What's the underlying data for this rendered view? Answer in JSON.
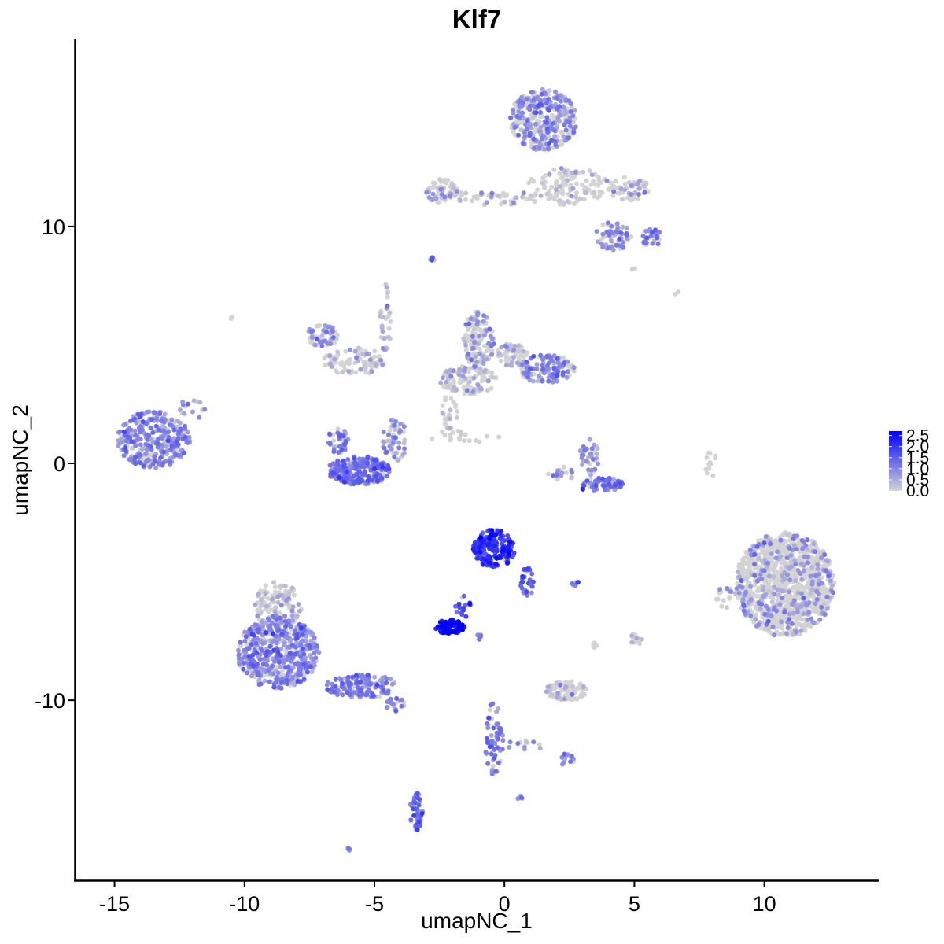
{
  "chart_data": {
    "type": "scatter",
    "title": "Klf7",
    "xlabel": "umapNC_1",
    "ylabel": "umapNC_2",
    "xlim": [
      -16.5,
      14.4
    ],
    "ylim": [
      -17.6,
      17.9
    ],
    "x_ticks": [
      {
        "value": -15,
        "label": "-15"
      },
      {
        "value": -10,
        "label": "-10"
      },
      {
        "value": -5,
        "label": "-5"
      },
      {
        "value": 0,
        "label": "0"
      },
      {
        "value": 5,
        "label": "5"
      },
      {
        "value": 10,
        "label": "10"
      }
    ],
    "y_ticks": [
      {
        "value": 10,
        "label": "10"
      },
      {
        "value": 0,
        "label": "0"
      },
      {
        "value": -10,
        "label": "-10"
      }
    ],
    "grid": false,
    "color_scale": {
      "low_color": "#d3d3d3",
      "high_color": "#0000ff",
      "min": 0,
      "max": 2.7,
      "legend_position": "right",
      "breaks": [
        {
          "value": 0.0,
          "label": "0.0"
        },
        {
          "value": 0.5,
          "label": "0.5"
        },
        {
          "value": 1.0,
          "label": "1.0"
        },
        {
          "value": 1.5,
          "label": "1.5"
        },
        {
          "value": 2.0,
          "label": "2.0"
        },
        {
          "value": 2.5,
          "label": "2.5"
        }
      ]
    },
    "clusters": [
      {
        "cx": -13.5,
        "cy": 1.0,
        "rx": 1.4,
        "ry": 1.2,
        "n": 320,
        "expr": 0.9,
        "frac_expr": 0.8
      },
      {
        "cx": -12.0,
        "cy": 2.3,
        "rx": 0.5,
        "ry": 0.5,
        "n": 15,
        "expr": 0.7,
        "frac_expr": 0.6
      },
      {
        "cx": -8.7,
        "cy": -8.0,
        "rx": 1.6,
        "ry": 1.5,
        "n": 560,
        "expr": 0.9,
        "frac_expr": 0.75
      },
      {
        "cx": -8.7,
        "cy": -6.0,
        "rx": 0.9,
        "ry": 1.0,
        "n": 120,
        "expr": 0.5,
        "frac_expr": 0.4
      },
      {
        "cx": -5.5,
        "cy": -9.4,
        "rx": 1.4,
        "ry": 0.5,
        "n": 150,
        "expr": 1.0,
        "frac_expr": 0.8
      },
      {
        "cx": -4.2,
        "cy": -10.2,
        "rx": 0.4,
        "ry": 0.3,
        "n": 20,
        "expr": 1.0,
        "frac_expr": 0.8
      },
      {
        "cx": -3.4,
        "cy": -14.7,
        "rx": 0.25,
        "ry": 0.8,
        "n": 45,
        "expr": 1.1,
        "frac_expr": 0.85
      },
      {
        "cx": -6.0,
        "cy": -16.3,
        "rx": 0.1,
        "ry": 0.08,
        "n": 4,
        "expr": 1.0,
        "frac_expr": 0.8
      },
      {
        "cx": -5.6,
        "cy": -0.3,
        "rx": 1.2,
        "ry": 0.6,
        "n": 260,
        "expr": 1.1,
        "frac_expr": 0.85
      },
      {
        "cx": -4.2,
        "cy": 1.0,
        "rx": 0.5,
        "ry": 0.9,
        "n": 60,
        "expr": 0.8,
        "frac_expr": 0.6
      },
      {
        "cx": -6.4,
        "cy": 1.0,
        "rx": 0.4,
        "ry": 0.6,
        "n": 40,
        "expr": 1.0,
        "frac_expr": 0.8
      },
      {
        "cx": -7.0,
        "cy": 5.4,
        "rx": 0.6,
        "ry": 0.5,
        "n": 70,
        "expr": 0.7,
        "frac_expr": 0.5
      },
      {
        "cx": -5.8,
        "cy": 4.3,
        "rx": 1.2,
        "ry": 0.6,
        "n": 90,
        "expr": 0.4,
        "frac_expr": 0.3
      },
      {
        "cx": -4.6,
        "cy": 6.0,
        "rx": 0.25,
        "ry": 1.6,
        "n": 30,
        "expr": 0.6,
        "frac_expr": 0.5
      },
      {
        "cx": -2.8,
        "cy": 8.6,
        "rx": 0.1,
        "ry": 0.1,
        "n": 5,
        "expr": 1.2,
        "frac_expr": 1.0
      },
      {
        "cx": -1.0,
        "cy": 5.2,
        "rx": 0.6,
        "ry": 1.2,
        "n": 130,
        "expr": 0.7,
        "frac_expr": 0.55
      },
      {
        "cx": -1.4,
        "cy": 3.5,
        "rx": 1.1,
        "ry": 0.6,
        "n": 110,
        "expr": 0.4,
        "frac_expr": 0.35
      },
      {
        "cx": 1.6,
        "cy": 4.0,
        "rx": 1.1,
        "ry": 0.6,
        "n": 130,
        "expr": 0.9,
        "frac_expr": 0.7
      },
      {
        "cx": 0.3,
        "cy": 4.6,
        "rx": 0.6,
        "ry": 0.5,
        "n": 60,
        "expr": 0.5,
        "frac_expr": 0.4
      },
      {
        "cx": -2.1,
        "cy": 2.1,
        "rx": 0.3,
        "ry": 0.9,
        "n": 25,
        "expr": 0.2,
        "frac_expr": 0.2
      },
      {
        "cx": -1.6,
        "cy": 1.1,
        "rx": 1.4,
        "ry": 0.3,
        "n": 18,
        "expr": 0.1,
        "frac_expr": 0.1
      },
      {
        "cx": 1.5,
        "cy": 14.5,
        "rx": 1.3,
        "ry": 1.3,
        "n": 340,
        "expr": 0.8,
        "frac_expr": 0.6
      },
      {
        "cx": -2.4,
        "cy": 11.5,
        "rx": 0.6,
        "ry": 0.5,
        "n": 60,
        "expr": 0.4,
        "frac_expr": 0.35
      },
      {
        "cx": -0.5,
        "cy": 11.2,
        "rx": 2.0,
        "ry": 0.3,
        "n": 45,
        "expr": 0.4,
        "frac_expr": 0.3
      },
      {
        "cx": 2.5,
        "cy": 11.7,
        "rx": 1.6,
        "ry": 0.8,
        "n": 120,
        "expr": 0.3,
        "frac_expr": 0.2
      },
      {
        "cx": 4.8,
        "cy": 11.6,
        "rx": 0.8,
        "ry": 0.5,
        "n": 60,
        "expr": 0.5,
        "frac_expr": 0.35
      },
      {
        "cx": 4.2,
        "cy": 9.6,
        "rx": 0.7,
        "ry": 0.6,
        "n": 70,
        "expr": 0.8,
        "frac_expr": 0.6
      },
      {
        "cx": 5.7,
        "cy": 9.5,
        "rx": 0.4,
        "ry": 0.4,
        "n": 35,
        "expr": 0.9,
        "frac_expr": 0.7
      },
      {
        "cx": 3.3,
        "cy": 0.3,
        "rx": 0.4,
        "ry": 0.8,
        "n": 40,
        "expr": 0.8,
        "frac_expr": 0.6
      },
      {
        "cx": 3.7,
        "cy": -0.9,
        "rx": 0.9,
        "ry": 0.3,
        "n": 60,
        "expr": 1.2,
        "frac_expr": 0.85
      },
      {
        "cx": 2.2,
        "cy": -0.4,
        "rx": 0.6,
        "ry": 0.3,
        "n": 15,
        "expr": 0.8,
        "frac_expr": 0.6
      },
      {
        "cx": 8.0,
        "cy": 0.0,
        "rx": 0.3,
        "ry": 0.6,
        "n": 12,
        "expr": 0.0,
        "frac_expr": 0.0
      },
      {
        "cx": 10.8,
        "cy": -5.1,
        "rx": 1.9,
        "ry": 2.2,
        "n": 1100,
        "expr": 0.7,
        "frac_expr": 0.22
      },
      {
        "cx": 8.5,
        "cy": -5.6,
        "rx": 0.4,
        "ry": 0.5,
        "n": 20,
        "expr": 0.6,
        "frac_expr": 0.3
      },
      {
        "cx": -0.4,
        "cy": -3.6,
        "rx": 0.8,
        "ry": 0.8,
        "n": 180,
        "expr": 1.9,
        "frac_expr": 0.95
      },
      {
        "cx": 0.9,
        "cy": -5.0,
        "rx": 0.3,
        "ry": 0.6,
        "n": 25,
        "expr": 1.3,
        "frac_expr": 0.9
      },
      {
        "cx": -2.1,
        "cy": -6.9,
        "rx": 0.6,
        "ry": 0.3,
        "n": 80,
        "expr": 2.4,
        "frac_expr": 1.0
      },
      {
        "cx": -1.6,
        "cy": -6.0,
        "rx": 0.3,
        "ry": 0.6,
        "n": 15,
        "expr": 1.8,
        "frac_expr": 0.9
      },
      {
        "cx": 2.8,
        "cy": -5.1,
        "rx": 0.2,
        "ry": 0.1,
        "n": 8,
        "expr": 1.3,
        "frac_expr": 0.8
      },
      {
        "cx": -0.9,
        "cy": -7.3,
        "rx": 0.15,
        "ry": 0.15,
        "n": 6,
        "expr": 1.2,
        "frac_expr": 0.8
      },
      {
        "cx": 2.4,
        "cy": -9.6,
        "rx": 0.8,
        "ry": 0.4,
        "n": 80,
        "expr": 0.3,
        "frac_expr": 0.2
      },
      {
        "cx": -0.4,
        "cy": -11.6,
        "rx": 0.35,
        "ry": 1.6,
        "n": 60,
        "expr": 1.1,
        "frac_expr": 0.8
      },
      {
        "cx": 2.4,
        "cy": -12.5,
        "rx": 0.3,
        "ry": 0.25,
        "n": 14,
        "expr": 1.1,
        "frac_expr": 0.8
      },
      {
        "cx": 0.8,
        "cy": -11.9,
        "rx": 0.8,
        "ry": 0.2,
        "n": 12,
        "expr": 0.8,
        "frac_expr": 0.6
      },
      {
        "cx": 5.0,
        "cy": -7.4,
        "rx": 0.3,
        "ry": 0.3,
        "n": 14,
        "expr": 0.5,
        "frac_expr": 0.4
      },
      {
        "cx": 3.4,
        "cy": -7.7,
        "rx": 0.2,
        "ry": 0.15,
        "n": 6,
        "expr": 0.0,
        "frac_expr": 0.0
      },
      {
        "cx": 0.6,
        "cy": -14.1,
        "rx": 0.1,
        "ry": 0.1,
        "n": 4,
        "expr": 1.0,
        "frac_expr": 0.8
      },
      {
        "cx": -10.5,
        "cy": 6.1,
        "rx": 0.1,
        "ry": 0.1,
        "n": 3,
        "expr": 0.0,
        "frac_expr": 0.0
      },
      {
        "cx": 6.6,
        "cy": 7.2,
        "rx": 0.1,
        "ry": 0.1,
        "n": 2,
        "expr": 0.0,
        "frac_expr": 0.0
      },
      {
        "cx": 5.0,
        "cy": 8.2,
        "rx": 0.1,
        "ry": 0.1,
        "n": 2,
        "expr": 0.0,
        "frac_expr": 0.0
      }
    ]
  }
}
